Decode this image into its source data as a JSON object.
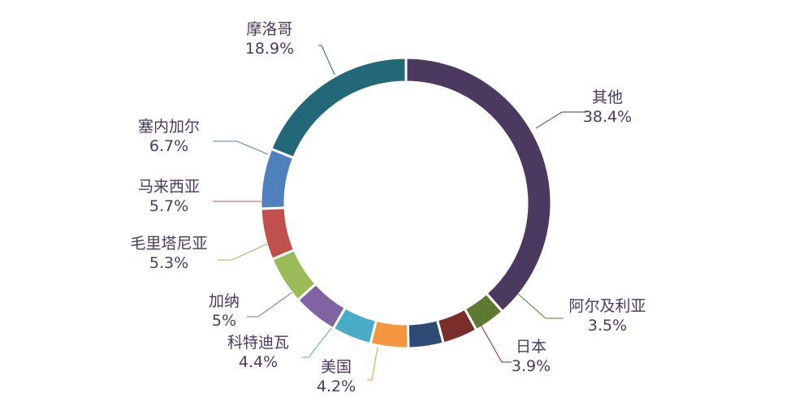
{
  "chart_data": {
    "type": "pie",
    "donut": true,
    "legend": "none",
    "slices": [
      {
        "name": "其他",
        "value": 38.4,
        "label": "38.4%",
        "color": "#4b3960"
      },
      {
        "name": "阿尔及利亚",
        "value": 3.5,
        "label": "3.5%",
        "color": "#5e7a2e"
      },
      {
        "name": "日本",
        "value": 3.9,
        "label": "3.9%",
        "color": "#7b2d2b"
      },
      {
        "name": "美国",
        "value": 4.2,
        "label": "4.2%",
        "color": "#2e4a75"
      },
      {
        "name": "科特迪瓦",
        "value": 4.4,
        "label": "4.4%",
        "color": "#f4963f"
      },
      {
        "name": "加纳",
        "value": 5,
        "label": "5%",
        "color": "#48acc6"
      },
      {
        "name": "毛里塔尼亚",
        "value": 5.3,
        "label": "5.3%",
        "color": "#8064a2"
      },
      {
        "name": "马来西亚",
        "value": 5.7,
        "label": "5.7%",
        "color": "#9bbb59"
      },
      {
        "name": "塞内加尔",
        "value": 6.7,
        "label": "6.7%",
        "color": "#c0504d"
      },
      {
        "name": "摩洛哥",
        "value": 18.9,
        "label": "18.9%",
        "color": "#4f81bd"
      }
    ],
    "extra_slice_color": "#226878"
  }
}
